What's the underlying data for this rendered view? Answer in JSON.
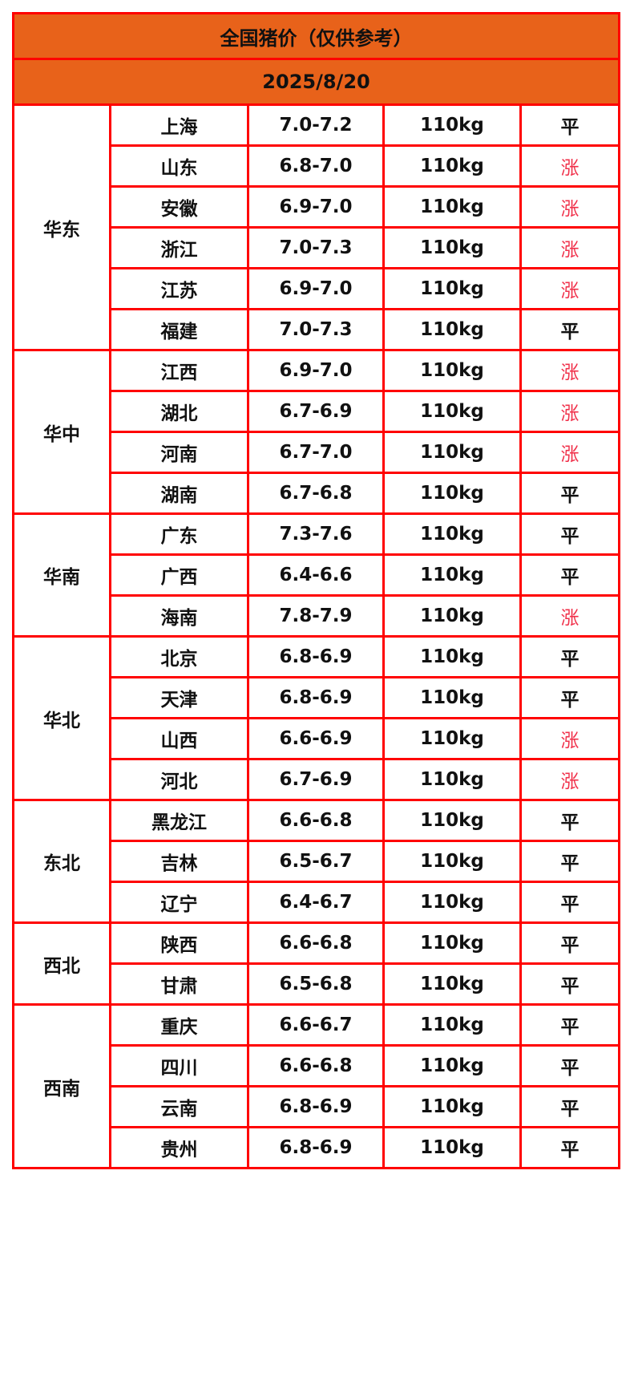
{
  "title": "全国猪价（仅供参考）",
  "date": "2025/8/20",
  "colors": {
    "header_bg": "#e8621a",
    "border": "#ff0000",
    "rise": "#f0304a"
  },
  "regions": [
    {
      "name": "华东",
      "rows": [
        {
          "province": "上海",
          "price": "7.0-7.2",
          "weight": "110kg",
          "trend": "平"
        },
        {
          "province": "山东",
          "price": "6.8-7.0",
          "weight": "110kg",
          "trend": "涨"
        },
        {
          "province": "安徽",
          "price": "6.9-7.0",
          "weight": "110kg",
          "trend": "涨"
        },
        {
          "province": "浙江",
          "price": "7.0-7.3",
          "weight": "110kg",
          "trend": "涨"
        },
        {
          "province": "江苏",
          "price": "6.9-7.0",
          "weight": "110kg",
          "trend": "涨"
        },
        {
          "province": "福建",
          "price": "7.0-7.3",
          "weight": "110kg",
          "trend": "平"
        }
      ]
    },
    {
      "name": "华中",
      "rows": [
        {
          "province": "江西",
          "price": "6.9-7.0",
          "weight": "110kg",
          "trend": "涨"
        },
        {
          "province": "湖北",
          "price": "6.7-6.9",
          "weight": "110kg",
          "trend": "涨"
        },
        {
          "province": "河南",
          "price": "6.7-7.0",
          "weight": "110kg",
          "trend": "涨"
        },
        {
          "province": "湖南",
          "price": "6.7-6.8",
          "weight": "110kg",
          "trend": "平"
        }
      ]
    },
    {
      "name": "华南",
      "rows": [
        {
          "province": "广东",
          "price": "7.3-7.6",
          "weight": "110kg",
          "trend": "平"
        },
        {
          "province": "广西",
          "price": "6.4-6.6",
          "weight": "110kg",
          "trend": "平"
        },
        {
          "province": "海南",
          "price": "7.8-7.9",
          "weight": "110kg",
          "trend": "涨"
        }
      ]
    },
    {
      "name": "华北",
      "rows": [
        {
          "province": "北京",
          "price": "6.8-6.9",
          "weight": "110kg",
          "trend": "平"
        },
        {
          "province": "天津",
          "price": "6.8-6.9",
          "weight": "110kg",
          "trend": "平"
        },
        {
          "province": "山西",
          "price": "6.6-6.9",
          "weight": "110kg",
          "trend": "涨"
        },
        {
          "province": "河北",
          "price": "6.7-6.9",
          "weight": "110kg",
          "trend": "涨"
        }
      ]
    },
    {
      "name": "东北",
      "rows": [
        {
          "province": "黑龙江",
          "price": "6.6-6.8",
          "weight": "110kg",
          "trend": "平"
        },
        {
          "province": "吉林",
          "price": "6.5-6.7",
          "weight": "110kg",
          "trend": "平"
        },
        {
          "province": "辽宁",
          "price": "6.4-6.7",
          "weight": "110kg",
          "trend": "平"
        }
      ]
    },
    {
      "name": "西北",
      "rows": [
        {
          "province": "陕西",
          "price": "6.6-6.8",
          "weight": "110kg",
          "trend": "平"
        },
        {
          "province": "甘肃",
          "price": "6.5-6.8",
          "weight": "110kg",
          "trend": "平"
        }
      ]
    },
    {
      "name": "西南",
      "rows": [
        {
          "province": "重庆",
          "price": "6.6-6.7",
          "weight": "110kg",
          "trend": "平"
        },
        {
          "province": "四川",
          "price": "6.6-6.8",
          "weight": "110kg",
          "trend": "平"
        },
        {
          "province": "云南",
          "price": "6.8-6.9",
          "weight": "110kg",
          "trend": "平"
        },
        {
          "province": "贵州",
          "price": "6.8-6.9",
          "weight": "110kg",
          "trend": "平"
        }
      ]
    }
  ]
}
